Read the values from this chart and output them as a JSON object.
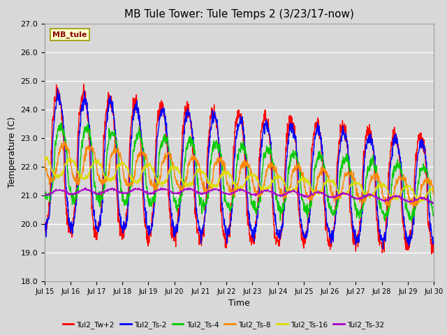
{
  "title": "MB Tule Tower: Tule Temps 2 (3/23/17-now)",
  "xlabel": "Time",
  "ylabel": "Temperature (C)",
  "ylim": [
    18.0,
    27.0
  ],
  "yticks": [
    18.0,
    19.0,
    20.0,
    21.0,
    22.0,
    23.0,
    24.0,
    25.0,
    26.0,
    27.0
  ],
  "xtick_labels": [
    "Jul 15",
    "Jul 16",
    "Jul 17",
    "Jul 18",
    "Jul 19",
    "Jul 20",
    "Jul 21",
    "Jul 22",
    "Jul 23",
    "Jul 24",
    "Jul 25",
    "Jul 26",
    "Jul 27",
    "Jul 28",
    "Jul 29",
    "Jul 30"
  ],
  "bg_color": "#d8d8d8",
  "plot_bg_color": "#d8d8d8",
  "grid_color": "#ffffff",
  "legend_entries": [
    "Tul2_Tw+2",
    "Tul2_Ts-2",
    "Tul2_Ts-4",
    "Tul2_Ts-8",
    "Tul2_Ts-16",
    "Tul2_Ts-32"
  ],
  "line_colors": [
    "#ff0000",
    "#0000ff",
    "#00cc00",
    "#ff8800",
    "#dddd00",
    "#aa00cc"
  ],
  "label_box_text": "MB_tule",
  "label_box_color": "#ffffcc",
  "label_box_edge": "#999900"
}
